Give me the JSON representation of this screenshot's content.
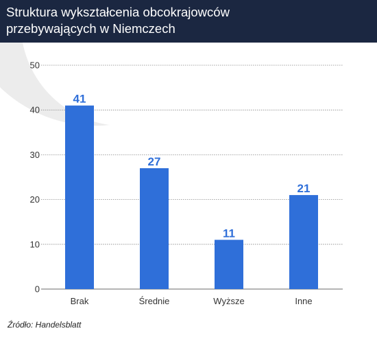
{
  "header": {
    "title_line1": "Struktura wykształcenia obcokrajowców",
    "title_line2": "przebywających w Niemczech"
  },
  "source": "Źródło: Handelsblatt",
  "colors": {
    "header_bg": "#1b2741",
    "bar": "#2f6fd9",
    "label": "#2f6fd9",
    "grid": "#888888",
    "watermark": "#ececec"
  },
  "chart_data": {
    "type": "bar",
    "title": "Struktura wykształcenia obcokrajowców przebywających w Niemczech",
    "xlabel": "",
    "ylabel": "",
    "categories": [
      "Brak",
      "Średnie",
      "Wyższe",
      "Inne"
    ],
    "values": [
      41,
      27,
      11,
      21
    ],
    "ylim": [
      0,
      50
    ],
    "yticks": [
      0,
      10,
      20,
      30,
      40,
      50
    ],
    "grid": true,
    "data_labels": true
  }
}
